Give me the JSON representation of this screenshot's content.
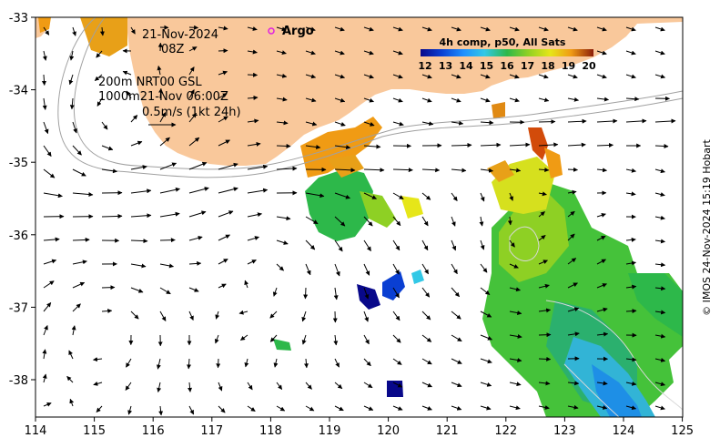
{
  "map": {
    "date_line": "21-Nov-2024",
    "hour_line": "08Z",
    "depth_line1": "200m  NRT00 GSL",
    "depth_line2": "1000m21-Nov 06:00Z",
    "vector_scale": "0.5m/s (1kt 24h)",
    "argo_label": "Argo",
    "credit": "© IMOS 24-Nov-2024 15:19 Hobart",
    "land_color": "#f9c89b"
  },
  "colorbar": {
    "title": "4h comp, p50, All Sats",
    "ticks": [
      "12",
      "13",
      "14",
      "15",
      "16",
      "17",
      "18",
      "19",
      "20"
    ],
    "min": 12,
    "max": 20,
    "colors": [
      "#08088a",
      "#0a3fd2",
      "#1e90ff",
      "#32c8e6",
      "#2db84a",
      "#8ed024",
      "#e6e619",
      "#f09b14",
      "#d24b0a",
      "#8c1e0a"
    ]
  },
  "axes": {
    "x_ticks": [
      "114",
      "115",
      "116",
      "117",
      "118",
      "119",
      "120",
      "121",
      "122",
      "123",
      "124",
      "125"
    ],
    "y_ticks": [
      "-33",
      "-34",
      "-35",
      "-36",
      "-37",
      "-38"
    ]
  }
}
